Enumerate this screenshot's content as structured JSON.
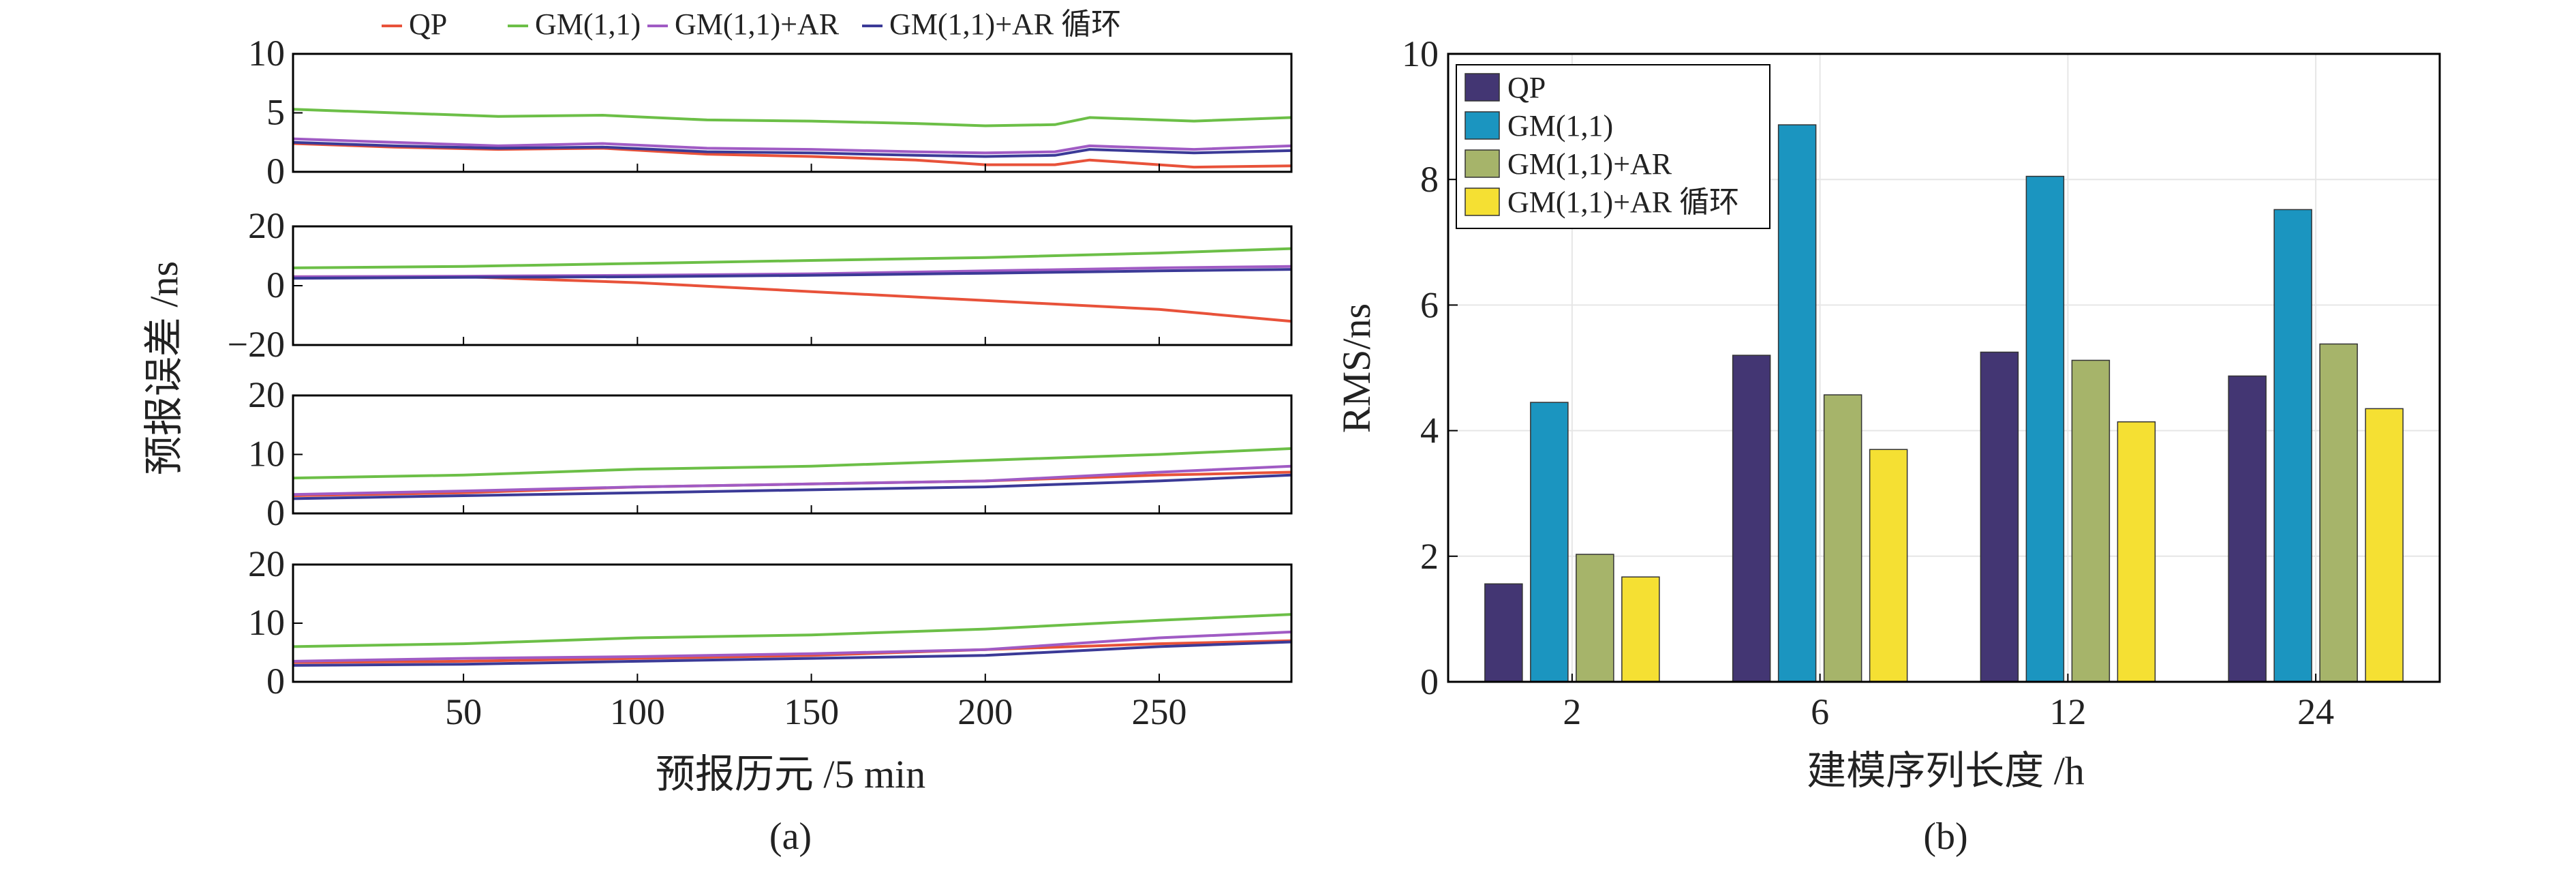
{
  "chart_data": [
    {
      "panel": "(a)",
      "type": "line",
      "ylabel": "预报误差 /ns",
      "xlabel": "预报历元 /5 min",
      "caption": "(a)",
      "legend": [
        {
          "name": "QP",
          "color": "#e8523a"
        },
        {
          "name": "GM(1,1)",
          "color": "#6cbf47"
        },
        {
          "name": "GM(1,1)+AR",
          "color": "#a05bc4"
        },
        {
          "name": "GM(1,1)+AR 循环",
          "color": "#3b3a97"
        }
      ],
      "xlim": [
        1,
        288
      ],
      "xticks": [
        50,
        100,
        150,
        200,
        250
      ],
      "subplots": [
        {
          "ylim": [
            0,
            10
          ],
          "yticks": [
            0,
            5,
            10
          ],
          "ytick_labels": [
            "0",
            "5",
            "10"
          ],
          "series": [
            {
              "name": "QP",
              "x": [
                1,
                30,
                60,
                90,
                120,
                150,
                180,
                200,
                220,
                230,
                260,
                288
              ],
              "values": [
                2.4,
                2.1,
                1.9,
                2.0,
                1.5,
                1.3,
                1.0,
                0.6,
                0.6,
                1.0,
                0.4,
                0.5
              ]
            },
            {
              "name": "GM(1,1)",
              "x": [
                1,
                30,
                60,
                90,
                120,
                150,
                180,
                200,
                220,
                230,
                260,
                288
              ],
              "values": [
                5.3,
                5.0,
                4.7,
                4.8,
                4.4,
                4.3,
                4.1,
                3.9,
                4.0,
                4.6,
                4.3,
                4.6
              ]
            },
            {
              "name": "GM(1,1)+AR",
              "x": [
                1,
                30,
                60,
                90,
                120,
                150,
                180,
                200,
                220,
                230,
                260,
                288
              ],
              "values": [
                2.8,
                2.5,
                2.2,
                2.4,
                2.0,
                1.9,
                1.7,
                1.6,
                1.7,
                2.2,
                1.9,
                2.2
              ]
            },
            {
              "name": "GM(1,1)+AR 循环",
              "x": [
                1,
                30,
                60,
                90,
                120,
                150,
                180,
                200,
                220,
                230,
                260,
                288
              ],
              "values": [
                2.5,
                2.2,
                2.0,
                2.1,
                1.7,
                1.6,
                1.4,
                1.3,
                1.4,
                1.9,
                1.6,
                1.8
              ]
            }
          ]
        },
        {
          "ylim": [
            -20,
            20
          ],
          "yticks": [
            -20,
            0,
            20
          ],
          "ytick_labels": [
            "−20",
            "0",
            "20"
          ],
          "series": [
            {
              "name": "QP",
              "x": [
                1,
                50,
                100,
                150,
                200,
                250,
                288
              ],
              "values": [
                3,
                3,
                1,
                -2,
                -5,
                -8,
                -12
              ]
            },
            {
              "name": "GM(1,1)",
              "x": [
                1,
                50,
                100,
                150,
                200,
                250,
                288
              ],
              "values": [
                6,
                6.5,
                7.5,
                8.5,
                9.5,
                11,
                12.5
              ]
            },
            {
              "name": "GM(1,1)+AR",
              "x": [
                1,
                50,
                100,
                150,
                200,
                250,
                288
              ],
              "values": [
                3,
                3.2,
                3.5,
                4,
                5,
                6,
                6.5
              ]
            },
            {
              "name": "GM(1,1)+AR 循环",
              "x": [
                1,
                50,
                100,
                150,
                200,
                250,
                288
              ],
              "values": [
                2.5,
                2.8,
                3,
                3.5,
                4.2,
                5,
                5.5
              ]
            }
          ]
        },
        {
          "ylim": [
            0,
            20
          ],
          "yticks": [
            0,
            10,
            20
          ],
          "ytick_labels": [
            "0",
            "10",
            "20"
          ],
          "series": [
            {
              "name": "QP",
              "x": [
                1,
                50,
                100,
                150,
                200,
                250,
                288
              ],
              "values": [
                3,
                3.5,
                4.5,
                5,
                5.5,
                6.5,
                7
              ]
            },
            {
              "name": "GM(1,1)",
              "x": [
                1,
                50,
                100,
                150,
                200,
                250,
                288
              ],
              "values": [
                6,
                6.5,
                7.5,
                8,
                9,
                10,
                11
              ]
            },
            {
              "name": "GM(1,1)+AR",
              "x": [
                1,
                50,
                100,
                150,
                200,
                250,
                288
              ],
              "values": [
                3.2,
                3.8,
                4.5,
                5,
                5.5,
                7,
                8
              ]
            },
            {
              "name": "GM(1,1)+AR 循环",
              "x": [
                1,
                50,
                100,
                150,
                200,
                250,
                288
              ],
              "values": [
                2.5,
                3,
                3.5,
                4,
                4.5,
                5.5,
                6.5
              ]
            }
          ]
        },
        {
          "ylim": [
            0,
            20
          ],
          "yticks": [
            0,
            10,
            20
          ],
          "ytick_labels": [
            "0",
            "10",
            "20"
          ],
          "series": [
            {
              "name": "QP",
              "x": [
                1,
                50,
                100,
                150,
                200,
                250,
                288
              ],
              "values": [
                3.3,
                3.5,
                4,
                4.5,
                5.5,
                6.5,
                7
              ]
            },
            {
              "name": "GM(1,1)",
              "x": [
                1,
                50,
                100,
                150,
                200,
                250,
                288
              ],
              "values": [
                6,
                6.5,
                7.5,
                8,
                9,
                10.5,
                11.5
              ]
            },
            {
              "name": "GM(1,1)+AR",
              "x": [
                1,
                50,
                100,
                150,
                200,
                250,
                288
              ],
              "values": [
                3.5,
                4,
                4.3,
                4.8,
                5.5,
                7.5,
                8.5
              ]
            },
            {
              "name": "GM(1,1)+AR 循环",
              "x": [
                1,
                50,
                100,
                150,
                200,
                250,
                288
              ],
              "values": [
                2.8,
                3,
                3.5,
                4,
                4.5,
                6,
                6.8
              ]
            }
          ]
        }
      ]
    },
    {
      "panel": "(b)",
      "type": "bar",
      "caption": "(b)",
      "xlabel": "建模序列长度 /h",
      "ylabel": "RMS/ns",
      "ylim": [
        0,
        10
      ],
      "yticks": [
        0,
        2,
        4,
        6,
        8,
        10
      ],
      "ytick_labels": [
        "0",
        "2",
        "4",
        "6",
        "8",
        "10"
      ],
      "grid": true,
      "legend_position": "top-left",
      "categories": [
        "2",
        "6",
        "12",
        "24"
      ],
      "series": [
        {
          "name": "QP",
          "color": "#433673",
          "values": [
            1.56,
            5.2,
            5.25,
            4.87
          ]
        },
        {
          "name": "GM(1,1)",
          "color": "#1b95c0",
          "values": [
            4.45,
            8.87,
            8.05,
            7.52
          ]
        },
        {
          "name": "GM(1,1)+AR",
          "color": "#a6b46a",
          "values": [
            2.03,
            4.57,
            5.12,
            5.38
          ]
        },
        {
          "name": "GM(1,1)+AR 循环",
          "color": "#f5e033",
          "values": [
            1.67,
            3.7,
            4.14,
            4.35
          ]
        }
      ]
    }
  ]
}
